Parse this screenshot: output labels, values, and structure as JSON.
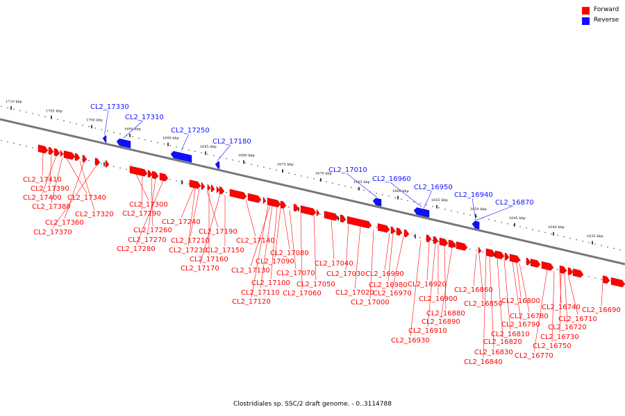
{
  "legend": [
    {
      "label": "Forward",
      "color": "#ff0000"
    },
    {
      "label": "Reverse",
      "color": "#1010ff"
    }
  ],
  "caption": "Clostridiales sp. SSC/2 draft genome. - 0..3114788",
  "colors": {
    "forward": "#ff0000",
    "reverse": "#1010ff",
    "backbone": "#777777"
  },
  "scale_ticks": [
    "1710 kbp",
    "1705 kbp",
    "1700 kbp",
    "1695 kbp",
    "1690 kbp",
    "1685 kbp",
    "1680 kbp",
    "1675 kbp",
    "1670 kbp",
    "1665 kbp",
    "1660 kbp",
    "1655 kbp",
    "1650 kbp",
    "1645 kbp",
    "1640 kbp",
    "1635 kbp"
  ],
  "reverse_genes": [
    "CL2_17330",
    "CL2_17310",
    "CL2_17250",
    "CL2_17180",
    "CL2_17010",
    "CL2_16960",
    "CL2_16950",
    "CL2_16940",
    "CL2_16870"
  ],
  "forward_genes": [
    "CL2_17410",
    "CL2_17390",
    "CL2_17400",
    "CL2_17340",
    "CL2_17380",
    "CL2_17320",
    "CL2_17360",
    "CL2_17370",
    "CL2_17300",
    "CL2_17290",
    "CL2_17260",
    "CL2_17270",
    "CL2_17280",
    "CL2_17240",
    "CL2_17210",
    "CL2_17190",
    "CL2_17230",
    "CL2_17150",
    "CL2_17160",
    "CL2_17170",
    "CL2_17140",
    "CL2_17130",
    "CL2_17080",
    "CL2_17090",
    "CL2_17100",
    "CL2_17070",
    "CL2_17110",
    "CL2_17120",
    "CL2_17060",
    "CL2_17050",
    "CL2_17040",
    "CL2_17030",
    "CL2_17020",
    "CL2_17000",
    "CL2_16990",
    "CL2_16980",
    "CL2_16970",
    "CL2_16920",
    "CL2_16900",
    "CL2_16880",
    "CL2_16890",
    "CL2_16910",
    "CL2_16930",
    "CL2_16860",
    "CL2_16850",
    "CL2_16800",
    "CL2_16780",
    "CL2_16790",
    "CL2_16810",
    "CL2_16820",
    "CL2_16830",
    "CL2_16840",
    "CL2_16740",
    "CL2_16710",
    "CL2_16720",
    "CL2_16730",
    "CL2_16750",
    "CL2_16770",
    "CL2_16690"
  ]
}
